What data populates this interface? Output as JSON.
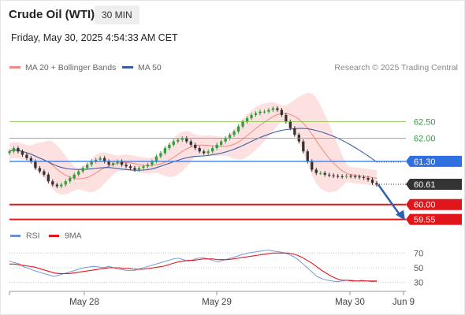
{
  "header": {
    "title": "Crude Oil (WTI)",
    "timeframe": "30 MIN",
    "datetime": "Friday, May 30, 2025 4:54:33 AM CET"
  },
  "legend": {
    "bollinger_label": "MA 20 + Bollinger Bands",
    "ma50_label": "MA 50",
    "credit": "Research © 2025 Trading Central",
    "rsi_label": "RSI",
    "rsi_ma_label": "9MA"
  },
  "colors": {
    "up": "#2e9e3e",
    "down": "#333333",
    "ma20": "#f08a80",
    "band": "#fddcdc",
    "ma50": "#3c5ea8",
    "support": "#e0161b",
    "pivot": "#3d7be8",
    "resistance": "#7cbb3c",
    "rsi": "#6a8fd8",
    "rsi_ma": "#e0161b"
  },
  "chart_data": [
    {
      "type": "candlestick",
      "title": "Crude Oil (WTI)",
      "timeframe": "30 MIN",
      "x_tick_labels": [
        "May 28",
        "May 29",
        "May 30",
        "Jun 9"
      ],
      "ylim": [
        59.4,
        63.6
      ],
      "grid": false,
      "price_levels": [
        {
          "label": "62.50",
          "value": 62.5,
          "role": "resistance"
        },
        {
          "label": "62.00",
          "value": 62.0,
          "role": "resistance"
        },
        {
          "label": "61.30",
          "value": 61.3,
          "role": "pivot"
        },
        {
          "label": "60.61",
          "value": 60.61,
          "role": "last"
        },
        {
          "label": "60.00",
          "value": 60.0,
          "role": "support"
        },
        {
          "label": "59.55",
          "value": 59.55,
          "role": "support"
        }
      ],
      "close": [
        61.6,
        61.7,
        61.6,
        61.5,
        61.4,
        61.3,
        61.1,
        61.0,
        60.9,
        60.7,
        60.6,
        60.55,
        60.6,
        60.7,
        60.8,
        60.9,
        61.0,
        61.1,
        61.2,
        61.3,
        61.35,
        61.4,
        61.3,
        61.2,
        61.25,
        61.3,
        61.2,
        61.15,
        61.1,
        61.05,
        61.1,
        61.15,
        61.2,
        61.3,
        61.45,
        61.55,
        61.7,
        61.8,
        61.9,
        61.95,
        62.0,
        61.9,
        61.8,
        61.7,
        61.6,
        61.55,
        61.6,
        61.7,
        61.8,
        61.9,
        62.0,
        62.1,
        62.2,
        62.35,
        62.5,
        62.6,
        62.7,
        62.75,
        62.8,
        62.8,
        62.85,
        62.9,
        62.85,
        62.7,
        62.5,
        62.3,
        62.1,
        61.9,
        61.6,
        61.3,
        61.05,
        60.95,
        60.95,
        60.9,
        60.88,
        60.86,
        60.85,
        60.84,
        60.86,
        60.85,
        60.84,
        60.82,
        60.8,
        60.75,
        60.65,
        60.6
      ],
      "series": [
        {
          "name": "MA 20 + Bollinger Bands",
          "role": "ma20"
        },
        {
          "name": "MA 50",
          "role": "ma50"
        }
      ]
    },
    {
      "type": "line",
      "title": "RSI",
      "y_tick_labels": [
        "70",
        "50",
        "30"
      ],
      "ylim": [
        20,
        80
      ],
      "series": [
        {
          "name": "RSI",
          "values": [
            59,
            57,
            55,
            51,
            49,
            46,
            44,
            42,
            40,
            38,
            40,
            42,
            44,
            46,
            48,
            50,
            51,
            52,
            51,
            50,
            52,
            50,
            48,
            47,
            46,
            46,
            48,
            50,
            52,
            54,
            56,
            58,
            60,
            62,
            63,
            61,
            59,
            61,
            63,
            64,
            62,
            60,
            58,
            60,
            62,
            64,
            66,
            68,
            70,
            71,
            72,
            73,
            74,
            73,
            72,
            71,
            69,
            66,
            62,
            56,
            50,
            44,
            38,
            35,
            33,
            32,
            31,
            32,
            33,
            33,
            32,
            33,
            32,
            31,
            31
          ]
        },
        {
          "name": "9MA",
          "values": [
            55,
            55,
            54,
            53,
            52,
            51,
            49,
            47,
            45,
            43,
            42,
            42,
            42,
            43,
            44,
            45,
            46,
            47,
            48,
            49,
            50,
            50,
            50,
            49,
            49,
            48,
            48,
            48,
            49,
            50,
            51,
            52,
            54,
            56,
            58,
            59,
            60,
            60,
            61,
            62,
            62,
            62,
            61,
            61,
            61,
            62,
            63,
            64,
            65,
            66,
            67,
            68,
            69,
            70,
            70,
            70,
            70,
            69,
            67,
            64,
            60,
            56,
            51,
            46,
            42,
            38,
            35,
            33,
            33,
            32,
            32,
            32,
            32,
            32,
            32
          ]
        }
      ]
    }
  ]
}
